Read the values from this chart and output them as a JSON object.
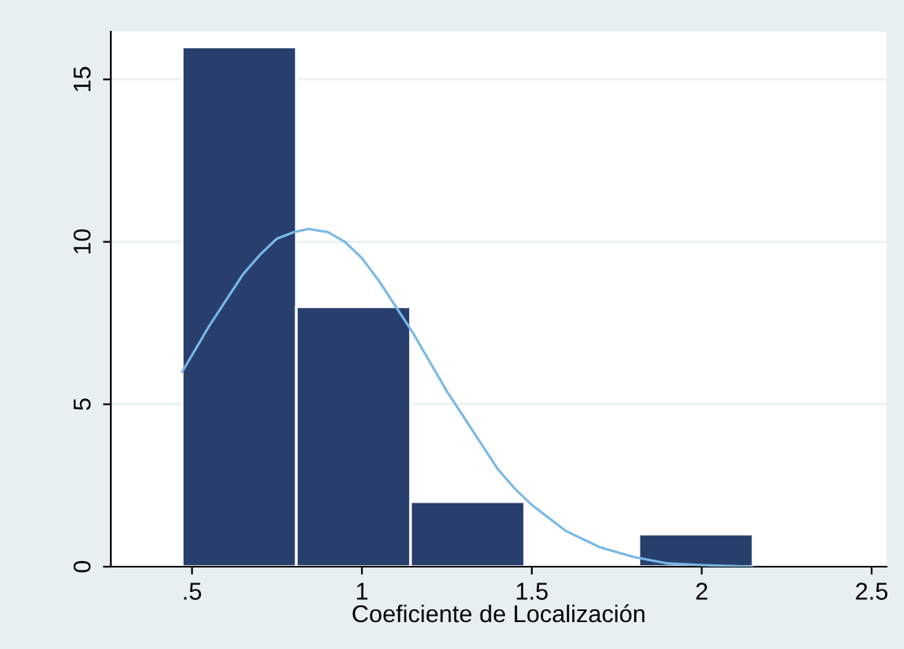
{
  "chart_data": {
    "type": "histogram",
    "xlabel": "Coeficiente de Localización",
    "bins": [
      0.471,
      0.807,
      1.143,
      1.479,
      1.815,
      2.151
    ],
    "values": [
      16,
      8,
      2,
      0,
      1
    ],
    "color": "#283f6e",
    "series": [
      {
        "type": "line",
        "color": "#79b8e6",
        "x": [
          0.471,
          0.55,
          0.6,
          0.65,
          0.7,
          0.75,
          0.8,
          0.843,
          0.9,
          0.95,
          1.0,
          1.05,
          1.1,
          1.15,
          1.2,
          1.25,
          1.3,
          1.35,
          1.4,
          1.45,
          1.5,
          1.6,
          1.7,
          1.8,
          1.9,
          2.0,
          2.15
        ],
        "values": [
          6.0,
          7.4,
          8.2,
          9.0,
          9.6,
          10.1,
          10.3,
          10.4,
          10.3,
          10.0,
          9.5,
          8.8,
          8.0,
          7.2,
          6.3,
          5.4,
          4.6,
          3.8,
          3.0,
          2.4,
          1.9,
          1.1,
          0.6,
          0.3,
          0.1,
          0.05,
          0.0
        ]
      }
    ],
    "xlim": [
      0.261,
      2.544
    ],
    "xticks": [
      {
        "value": 0.5,
        "label": ".5"
      },
      1,
      1.5,
      2,
      2.5
    ],
    "ylim": [
      0,
      16.47
    ],
    "yticks": [
      0,
      5,
      10,
      15
    ],
    "grid": "y",
    "legend": false,
    "marker": "none",
    "line_style": "solid"
  }
}
